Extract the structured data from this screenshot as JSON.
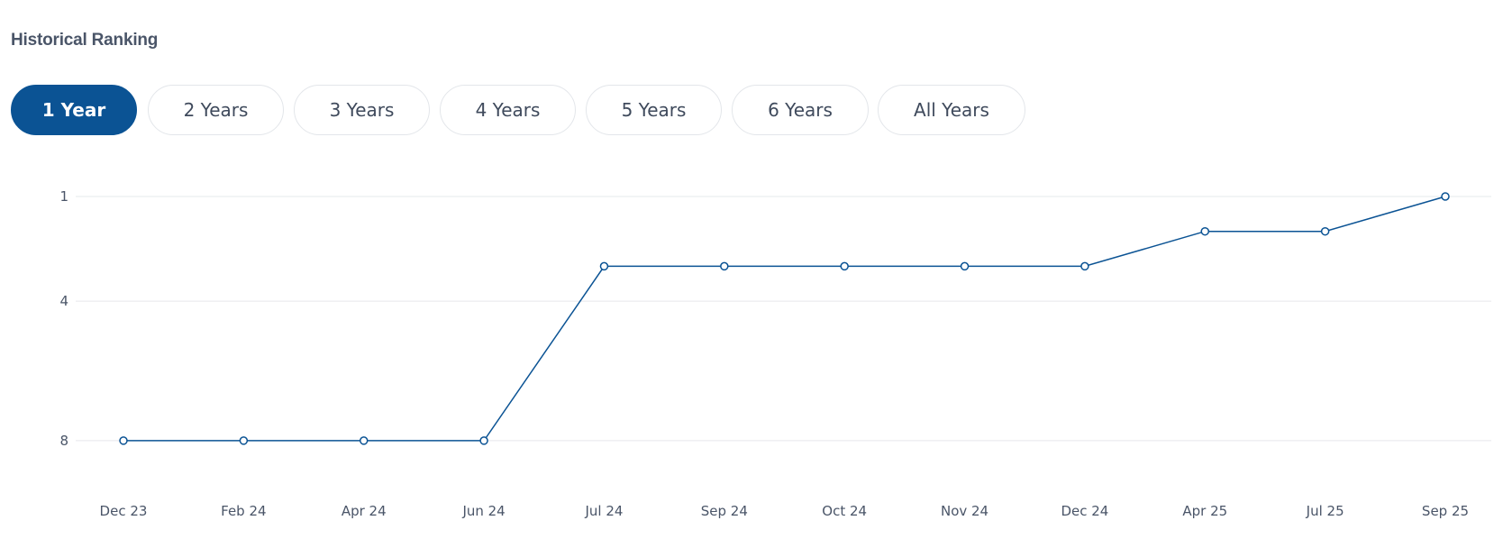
{
  "header": {
    "title": "Historical Ranking"
  },
  "tabs": [
    {
      "label": "1 Year",
      "active": true
    },
    {
      "label": "2 Years",
      "active": false
    },
    {
      "label": "3 Years",
      "active": false
    },
    {
      "label": "4 Years",
      "active": false
    },
    {
      "label": "5 Years",
      "active": false
    },
    {
      "label": "6 Years",
      "active": false
    },
    {
      "label": "All Years",
      "active": false
    }
  ],
  "colors": {
    "accent": "#0b5394",
    "line": "#0b5394",
    "grid": "#e6e8eb"
  },
  "chart_data": {
    "type": "line",
    "title": "",
    "xlabel": "",
    "ylabel": "",
    "categories": [
      "Dec 23",
      "Feb 24",
      "Apr 24",
      "Jun 24",
      "Jul 24",
      "Sep 24",
      "Oct 24",
      "Nov 24",
      "Dec 24",
      "Apr 25",
      "Jul 25",
      "Sep 25"
    ],
    "series": [
      {
        "values": [
          8,
          8,
          8,
          8,
          3,
          3,
          3,
          3,
          3,
          2,
          2,
          1
        ]
      }
    ],
    "yticks": [
      1,
      4,
      8
    ],
    "ylim": [
      1,
      8
    ],
    "y_reversed": true,
    "grid": true,
    "markers": "hollow-circle"
  }
}
